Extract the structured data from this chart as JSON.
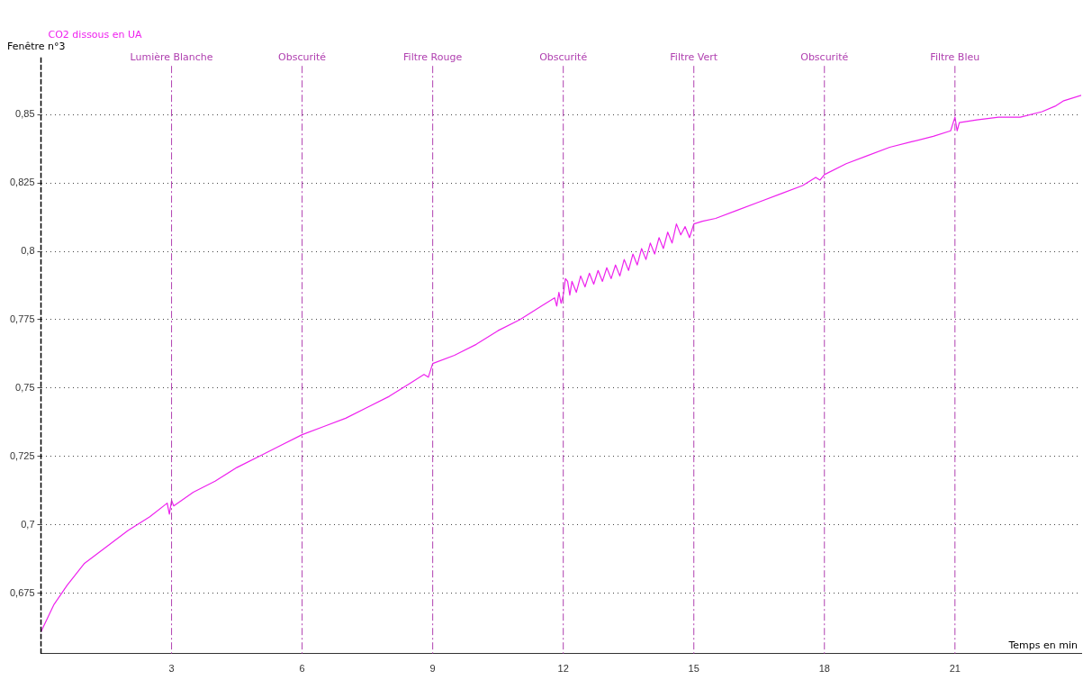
{
  "chart_data": {
    "type": "line",
    "title": "Fenêtre n°3",
    "ylabel": "CO2 dissous en UA",
    "xlabel": "Temps en min",
    "xlim": [
      0,
      23.9
    ],
    "ylim": [
      0.653,
      0.871
    ],
    "xticks": [
      3,
      6,
      9,
      12,
      15,
      18,
      21
    ],
    "yticks": [
      {
        "value": 0.675,
        "label": "0,675"
      },
      {
        "value": 0.7,
        "label": "0,7"
      },
      {
        "value": 0.725,
        "label": "0,725"
      },
      {
        "value": 0.75,
        "label": "0,75"
      },
      {
        "value": 0.775,
        "label": "0,775"
      },
      {
        "value": 0.8,
        "label": "0,8"
      },
      {
        "value": 0.825,
        "label": "0,825"
      },
      {
        "value": 0.85,
        "label": "0,85"
      }
    ],
    "grid": "y",
    "legend": false,
    "marker": "none",
    "line_style": "solid",
    "ref_lines": [
      {
        "axis": "x",
        "value": 3,
        "label": "Lumière Blanche",
        "color": "#b040b0",
        "line_style": "dashed"
      },
      {
        "axis": "x",
        "value": 6,
        "label": "Obscurité",
        "color": "#b040b0",
        "line_style": "dashed"
      },
      {
        "axis": "x",
        "value": 9,
        "label": "Filtre Rouge",
        "color": "#b040b0",
        "line_style": "dashed"
      },
      {
        "axis": "x",
        "value": 12,
        "label": "Obscurité",
        "color": "#b040b0",
        "line_style": "dashed"
      },
      {
        "axis": "x",
        "value": 15,
        "label": "Filtre Vert",
        "color": "#b040b0",
        "line_style": "dashed"
      },
      {
        "axis": "x",
        "value": 18,
        "label": "Obscurité",
        "color": "#b040b0",
        "line_style": "dashed"
      },
      {
        "axis": "x",
        "value": 21,
        "label": "Filtre Bleu",
        "color": "#b040b0",
        "line_style": "dashed"
      }
    ],
    "series": [
      {
        "color": "#ee22ee",
        "x": [
          0,
          0.3,
          0.6,
          1,
          1.5,
          2,
          2.5,
          2.9,
          2.95,
          3,
          3.05,
          3.5,
          4,
          4.5,
          5,
          5.5,
          6,
          6.5,
          7,
          7.5,
          8,
          8.5,
          8.8,
          8.9,
          9,
          9.5,
          10,
          10.5,
          11,
          11.5,
          11.8,
          11.85,
          11.9,
          11.95,
          12,
          12.05,
          12.1,
          12.15,
          12.2,
          12.3,
          12.4,
          12.5,
          12.6,
          12.7,
          12.8,
          12.9,
          13,
          13.1,
          13.2,
          13.3,
          13.4,
          13.5,
          13.6,
          13.7,
          13.8,
          13.9,
          14,
          14.1,
          14.2,
          14.3,
          14.4,
          14.5,
          14.6,
          14.7,
          14.8,
          14.9,
          15,
          15.2,
          15.5,
          16,
          16.5,
          17,
          17.5,
          17.8,
          17.9,
          18,
          18.5,
          19,
          19.5,
          20,
          20.5,
          20.9,
          21,
          21.05,
          21.1,
          21.5,
          22,
          22.5,
          23,
          23.3,
          23.5,
          23.9
        ],
        "values": [
          0.661,
          0.671,
          0.678,
          0.686,
          0.692,
          0.698,
          0.703,
          0.708,
          0.704,
          0.709,
          0.707,
          0.712,
          0.716,
          0.721,
          0.725,
          0.729,
          0.733,
          0.736,
          0.739,
          0.743,
          0.747,
          0.752,
          0.755,
          0.754,
          0.759,
          0.762,
          0.766,
          0.771,
          0.775,
          0.78,
          0.783,
          0.78,
          0.785,
          0.781,
          0.784,
          0.79,
          0.789,
          0.784,
          0.789,
          0.785,
          0.791,
          0.787,
          0.792,
          0.788,
          0.793,
          0.789,
          0.794,
          0.79,
          0.795,
          0.791,
          0.797,
          0.793,
          0.799,
          0.795,
          0.801,
          0.797,
          0.803,
          0.799,
          0.805,
          0.801,
          0.807,
          0.803,
          0.81,
          0.806,
          0.809,
          0.805,
          0.81,
          0.811,
          0.812,
          0.815,
          0.818,
          0.821,
          0.824,
          0.827,
          0.826,
          0.828,
          0.832,
          0.835,
          0.838,
          0.84,
          0.842,
          0.844,
          0.849,
          0.844,
          0.847,
          0.848,
          0.849,
          0.849,
          0.851,
          0.853,
          0.855,
          0.857
        ]
      }
    ]
  }
}
